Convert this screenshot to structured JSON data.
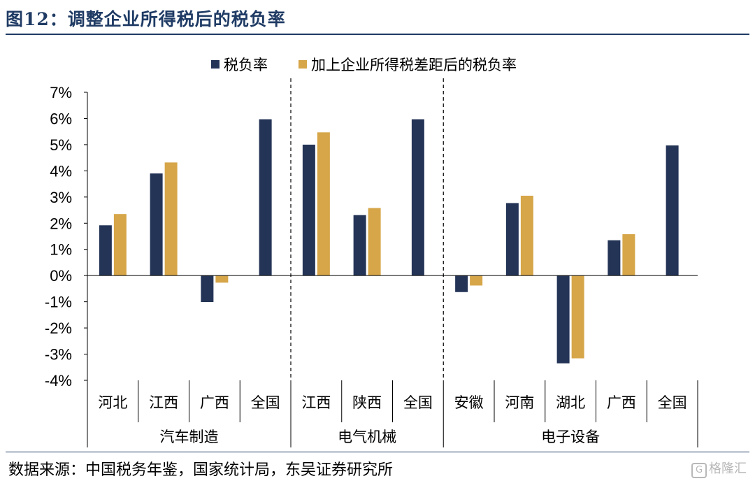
{
  "header": {
    "title": "图12：调整企业所得税后的税负率"
  },
  "footer": {
    "source": "数据来源：中国税务年鉴，国家统计局，东吴证券研究所",
    "watermark": "格隆汇"
  },
  "colors": {
    "series_1": "#243457",
    "series_2": "#d6a649",
    "title": "#1f3b64"
  },
  "chart_data": {
    "type": "bar",
    "title": "",
    "xlabel": "",
    "ylabel": "",
    "ylim": [
      -0.04,
      0.07
    ],
    "yticks": [
      0.07,
      0.06,
      0.05,
      0.04,
      0.03,
      0.02,
      0.01,
      0,
      -0.01,
      -0.02,
      -0.03,
      -0.04
    ],
    "ytick_labels": [
      "7%",
      "6%",
      "5%",
      "4%",
      "3%",
      "2%",
      "1%",
      "0%",
      "-1%",
      "-2%",
      "-3%",
      "-4%"
    ],
    "legend": {
      "placement": "top-center",
      "entries": [
        "税负率",
        "加上企业所得税差距后的税负率"
      ]
    },
    "grid": false,
    "groups": [
      {
        "label": "汽车制造",
        "categories": [
          "河北",
          "江西",
          "广西",
          "全国"
        ]
      },
      {
        "label": "电气机械",
        "categories": [
          "江西",
          "陕西",
          "全国"
        ]
      },
      {
        "label": "电子设备",
        "categories": [
          "安徽",
          "河南",
          "湖北",
          "广西",
          "全国"
        ]
      }
    ],
    "categories": [
      "河北",
      "江西",
      "广西",
      "全国",
      "江西",
      "陕西",
      "全国",
      "安徽",
      "河南",
      "湖北",
      "广西",
      "全国"
    ],
    "series": [
      {
        "name": "税负率",
        "values": [
          0.0192,
          0.039,
          -0.0101,
          0.0597,
          0.05,
          0.0231,
          0.0597,
          -0.0063,
          0.0277,
          -0.0335,
          0.0135,
          0.0497
        ]
      },
      {
        "name": "加上企业所得税差距后的税负率",
        "values": [
          0.0235,
          0.0432,
          -0.0027,
          null,
          0.0547,
          0.0258,
          null,
          -0.0038,
          0.0305,
          -0.0316,
          0.0158,
          null
        ]
      }
    ]
  }
}
